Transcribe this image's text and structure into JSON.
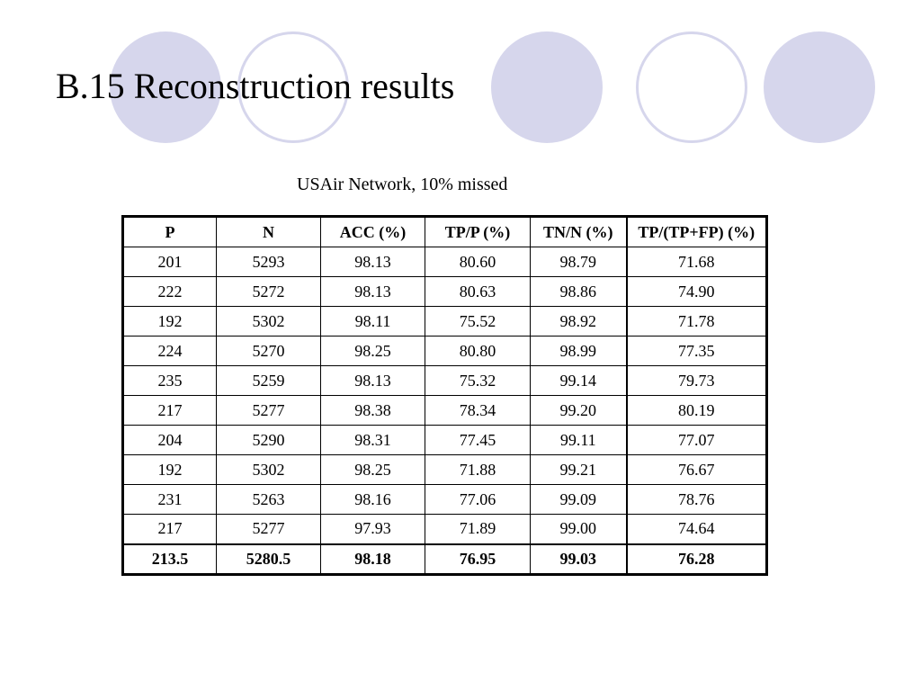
{
  "slide": {
    "title": "B.15 Reconstruction results",
    "caption": "USAir Network, 10% missed",
    "decoration_color": "#d6d6ec"
  },
  "table": {
    "headers": [
      "P",
      "N",
      "ACC (%)",
      "TP/P (%)",
      "TN/N (%)",
      "TP/(TP+FP) (%)"
    ],
    "rows": [
      [
        "201",
        "5293",
        "98.13",
        "80.60",
        "98.79",
        "71.68"
      ],
      [
        "222",
        "5272",
        "98.13",
        "80.63",
        "98.86",
        "74.90"
      ],
      [
        "192",
        "5302",
        "98.11",
        "75.52",
        "98.92",
        "71.78"
      ],
      [
        "224",
        "5270",
        "98.25",
        "80.80",
        "98.99",
        "77.35"
      ],
      [
        "235",
        "5259",
        "98.13",
        "75.32",
        "99.14",
        "79.73"
      ],
      [
        "217",
        "5277",
        "98.38",
        "78.34",
        "99.20",
        "80.19"
      ],
      [
        "204",
        "5290",
        "98.31",
        "77.45",
        "99.11",
        "77.07"
      ],
      [
        "192",
        "5302",
        "98.25",
        "71.88",
        "99.21",
        "76.67"
      ],
      [
        "231",
        "5263",
        "98.16",
        "77.06",
        "99.09",
        "78.76"
      ],
      [
        "217",
        "5277",
        "97.93",
        "71.89",
        "99.00",
        "74.64"
      ]
    ],
    "summary": [
      "213.5",
      "5280.5",
      "98.18",
      "76.95",
      "99.03",
      "76.28"
    ]
  }
}
